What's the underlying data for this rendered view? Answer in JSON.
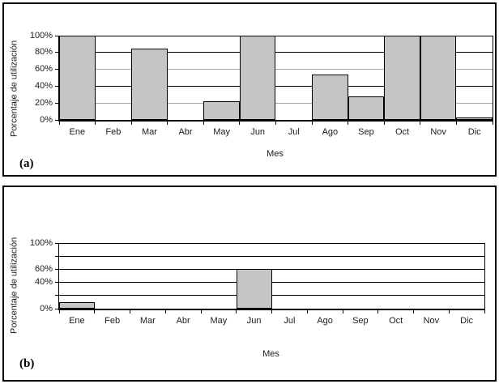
{
  "figure": {
    "background": "#ffffff",
    "text_color": "#1b1b2b",
    "bar_fill": "#c5c5c7",
    "bar_border": "#000000"
  },
  "chart_data": [
    {
      "type": "bar",
      "panel_label": "(a)",
      "xlabel": "Mes",
      "ylabel": "Porcentaje de utilización",
      "categories": [
        "Ene",
        "Feb",
        "Mar",
        "Abr",
        "May",
        "Jun",
        "Jul",
        "Ago",
        "Sep",
        "Oct",
        "Nov",
        "Dic"
      ],
      "values": [
        100,
        0,
        85,
        0,
        22,
        100,
        0,
        54,
        28,
        100,
        100,
        2
      ],
      "ylim": [
        0,
        100
      ],
      "grid": true,
      "legend": "none",
      "yticks": [
        {
          "value": 0,
          "label": "0%",
          "grid_color": ""
        },
        {
          "value": 20,
          "label": "20%",
          "grid_color": "#a8a8a8"
        },
        {
          "value": 40,
          "label": "40%",
          "grid_color": "#000000"
        },
        {
          "value": 60,
          "label": "60%",
          "grid_color": "#a8a8a8"
        },
        {
          "value": 80,
          "label": "80%",
          "grid_color": "#000000"
        },
        {
          "value": 100,
          "label": "100%",
          "grid_color": "#000000"
        }
      ]
    },
    {
      "type": "bar",
      "panel_label": "(b)",
      "xlabel": "Mes",
      "ylabel": "Porcentaje de utilización",
      "categories": [
        "Ene",
        "Feb",
        "Mar",
        "Abr",
        "May",
        "Jun",
        "Jul",
        "Ago",
        "Sep",
        "Oct",
        "Nov",
        "Dic"
      ],
      "values": [
        10,
        0,
        0,
        0,
        0,
        60,
        0,
        0,
        0,
        0,
        0,
        0
      ],
      "ylim": [
        0,
        100
      ],
      "grid": true,
      "legend": "none",
      "yticks": [
        {
          "value": 0,
          "label": "0%",
          "grid_color": ""
        },
        {
          "value": 20,
          "label": "",
          "grid_color": "#000000"
        },
        {
          "value": 40,
          "label": "40%",
          "grid_color": "#000000"
        },
        {
          "value": 60,
          "label": "60%",
          "grid_color": "#000000"
        },
        {
          "value": 80,
          "label": "",
          "grid_color": "#000000"
        },
        {
          "value": 100,
          "label": "100%",
          "grid_color": "#000000"
        }
      ]
    }
  ]
}
